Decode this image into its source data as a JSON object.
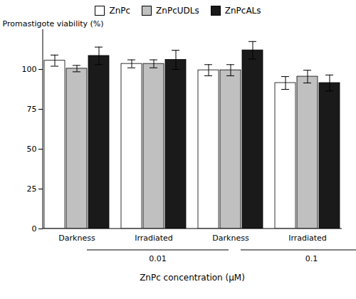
{
  "chart_data": {
    "type": "bar",
    "categories": [
      "Darkness",
      "Irradiated",
      "Darkness",
      "Irradiated"
    ],
    "series": [
      {
        "name": "ZnPc",
        "color": "#ffffff",
        "values": [
          105.5,
          103.5,
          99.5,
          91.5
        ],
        "errors": [
          3.5,
          2.5,
          3.5,
          4.0
        ]
      },
      {
        "name": "ZnPcUDLs",
        "color": "#c0c0c0",
        "values": [
          100.5,
          103.5,
          99.5,
          95.5
        ],
        "errors": [
          2.0,
          2.5,
          3.5,
          4.0
        ]
      },
      {
        "name": "ZnPcALs",
        "color": "#1a1a1a",
        "values": [
          108.5,
          106.0,
          112.0,
          91.5
        ],
        "errors": [
          5.5,
          6.0,
          5.5,
          5.0
        ]
      }
    ],
    "xlabel": "ZnPc concentration (μM)",
    "ylabel": "Promastigote viability (%)",
    "ylim": [
      0,
      125
    ],
    "yticks": [
      0,
      25,
      50,
      75,
      100
    ],
    "annotations": [
      "0.01",
      "0.1"
    ],
    "legend": "top",
    "grid": false
  }
}
